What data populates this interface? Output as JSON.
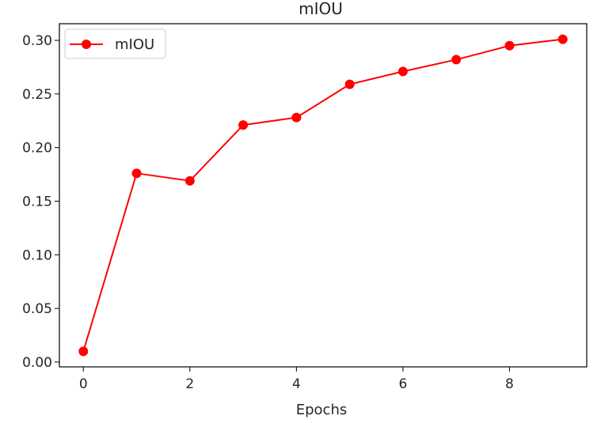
{
  "chart_data": {
    "type": "line",
    "title": "mIOU",
    "xlabel": "Epochs",
    "ylabel": "",
    "x": [
      0,
      1,
      2,
      3,
      4,
      5,
      6,
      7,
      8,
      9
    ],
    "series": [
      {
        "name": "mIOU",
        "color": "#ff0000",
        "marker": "circle",
        "values": [
          0.01,
          0.176,
          0.169,
          0.221,
          0.228,
          0.259,
          0.271,
          0.282,
          0.295,
          0.301
        ]
      }
    ],
    "xlim": [
      -0.45,
      9.45
    ],
    "ylim": [
      -0.0045,
      0.3155
    ],
    "xticks": [
      0,
      2,
      4,
      6,
      8
    ],
    "xtick_labels": [
      "0",
      "2",
      "4",
      "6",
      "8"
    ],
    "yticks": [
      0.0,
      0.05,
      0.1,
      0.15,
      0.2,
      0.25,
      0.3
    ],
    "ytick_labels": [
      "0.00",
      "0.05",
      "0.10",
      "0.15",
      "0.20",
      "0.25",
      "0.30"
    ],
    "grid": false,
    "legend": "upper-left"
  }
}
